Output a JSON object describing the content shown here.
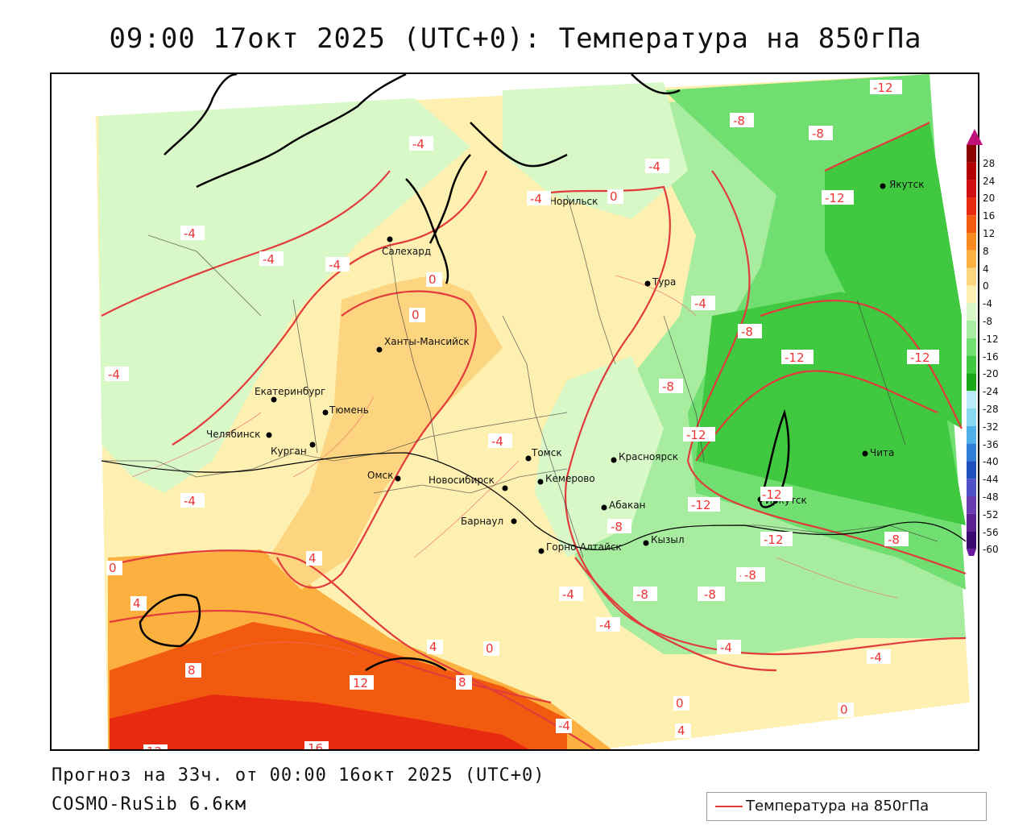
{
  "title": "09:00 17окт 2025 (UTC+0): Температура на 850гПа",
  "footer": {
    "forecast": "Прогноз на 33ч. от 00:00 16окт 2025 (UTC+0)",
    "model": "COSMO-RuSib 6.6км"
  },
  "legend": {
    "label": "Температура на 850гПа",
    "line_color": "#e23b3b"
  },
  "colorbar": {
    "ticks": [
      "28",
      "24",
      "20",
      "16",
      "12",
      "8",
      "4",
      "0",
      "-4",
      "-8",
      "-12",
      "-16",
      "-20",
      "-24",
      "-28",
      "-32",
      "-36",
      "-40",
      "-44",
      "-48",
      "-52",
      "-56",
      "-60"
    ],
    "colors": [
      "#8b0000",
      "#b30000",
      "#d01010",
      "#e82a10",
      "#f25a10",
      "#f98a20",
      "#fbb040",
      "#fdd580",
      "#fdf0b0",
      "#d8f8c8",
      "#a8eca0",
      "#70de70",
      "#40c840",
      "#18a818",
      "#b8ecf8",
      "#88d8f0",
      "#50b0e8",
      "#3080d8",
      "#2050c0",
      "#5050c8",
      "#6a3ab0",
      "#5a2090",
      "#3a0a70"
    ],
    "top_arrow_color": "#c0107a",
    "bottom_arrow_color": "#6a1a9a"
  },
  "cities": [
    {
      "name": "Якутск"
    },
    {
      "name": "Норильск"
    },
    {
      "name": "Салехард"
    },
    {
      "name": "Тура"
    },
    {
      "name": "Ханты-Мансийск"
    },
    {
      "name": "Екатеринбург"
    },
    {
      "name": "Тюмень"
    },
    {
      "name": "Челябинск"
    },
    {
      "name": "Курган"
    },
    {
      "name": "Омск"
    },
    {
      "name": "Новосибирск"
    },
    {
      "name": "Томск"
    },
    {
      "name": "Кемерово"
    },
    {
      "name": "Красноярск"
    },
    {
      "name": "Барнаул"
    },
    {
      "name": "Абакан"
    },
    {
      "name": "Горно-Алтайск"
    },
    {
      "name": "Кызыл"
    },
    {
      "name": "Иркутск"
    },
    {
      "name": "Чита"
    }
  ],
  "isotherm_labels": [
    "-12",
    "-8",
    "-8",
    "-12",
    "-4",
    "-4",
    "-4",
    "0",
    "-4",
    "-4",
    "-4",
    "0",
    "0",
    "-4",
    "-4",
    "-8",
    "-8",
    "-12",
    "-12",
    "-12",
    "-4",
    "-8",
    "-12",
    "-12",
    "-8",
    "-8",
    "-8",
    "-8",
    "-4",
    "-4",
    "-4",
    "-4",
    "0",
    "4",
    "4",
    "8",
    "12",
    "8",
    "4",
    "0",
    "0",
    "4",
    "0",
    "16",
    "12",
    "-4",
    "-4",
    "-12",
    "-8",
    "-8"
  ]
}
